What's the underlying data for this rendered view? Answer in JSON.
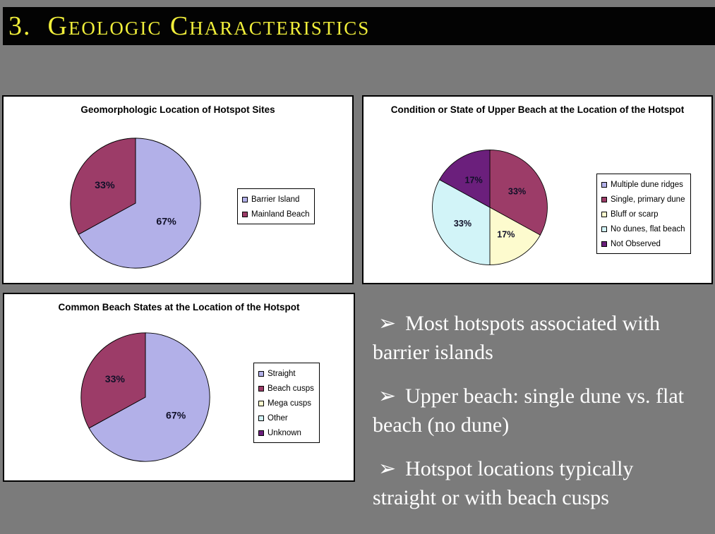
{
  "title": "3.  Geologic Characteristics",
  "colors": {
    "slide_background": "#7b7b7b",
    "title_bar_background": "#030303",
    "title_text": "#f0ee3a",
    "panel_background": "#ffffff",
    "bullet_text": "#ffffff",
    "pie_label_text": "#101028"
  },
  "bullet_glyph": "➢",
  "bullets": [
    "Most hotspots associated with barrier islands",
    "Upper beach: single dune vs. flat beach (no dune)",
    "Hotspot locations typically straight or with beach cusps"
  ],
  "chart_data": [
    {
      "type": "pie",
      "title": "Geomorphologic Location of Hotspot Sites",
      "legend_position": "right",
      "start_angle_deg": 0,
      "direction": "clockwise",
      "slices": [
        {
          "label": "Barrier Island",
          "value": 67,
          "display": "67%",
          "color": "#b2b0e8"
        },
        {
          "label": "Mainland Beach",
          "value": 33,
          "display": "33%",
          "color": "#9c3c68"
        }
      ]
    },
    {
      "type": "pie",
      "title": "Condition or State of Upper Beach at the Location of the Hotspot",
      "legend_position": "right",
      "start_angle_deg": 0,
      "direction": "clockwise",
      "slices": [
        {
          "label": "Multiple dune ridges",
          "value": 0,
          "display": "",
          "color": "#b2b0e8"
        },
        {
          "label": "Single, primary dune",
          "value": 33,
          "display": "33%",
          "color": "#9c3c68"
        },
        {
          "label": "Bluff or scarp",
          "value": 17,
          "display": "17%",
          "color": "#fdfbce"
        },
        {
          "label": "No dunes, flat beach",
          "value": 33,
          "display": "33%",
          "color": "#d2f4f8"
        },
        {
          "label": "Not Observed",
          "value": 17,
          "display": "17%",
          "color": "#6b1f7c"
        }
      ]
    },
    {
      "type": "pie",
      "title": "Common Beach States at the Location of the Hotspot",
      "legend_position": "right",
      "start_angle_deg": 0,
      "direction": "clockwise",
      "slices": [
        {
          "label": "Straight",
          "value": 67,
          "display": "67%",
          "color": "#b2b0e8"
        },
        {
          "label": "Beach cusps",
          "value": 33,
          "display": "33%",
          "color": "#9c3c68"
        },
        {
          "label": "Mega cusps",
          "value": 0,
          "display": "",
          "color": "#fdfbce"
        },
        {
          "label": "Other",
          "value": 0,
          "display": "",
          "color": "#d2f4f8"
        },
        {
          "label": "Unknown",
          "value": 0,
          "display": "",
          "color": "#6b1f7c"
        }
      ]
    }
  ]
}
